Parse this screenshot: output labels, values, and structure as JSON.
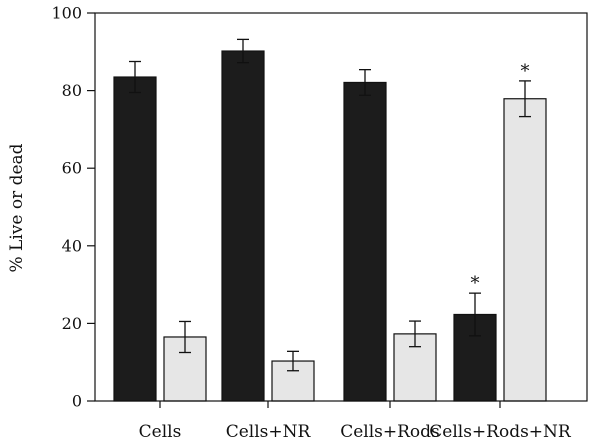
{
  "chart_data": {
    "type": "bar",
    "title": "",
    "xlabel": "",
    "ylabel": "% Live or dead",
    "ylim": [
      0,
      100
    ],
    "yticks": [
      0,
      20,
      40,
      60,
      80,
      100
    ],
    "grid": false,
    "legend": "none",
    "categories": [
      "Cells",
      "Cells+NR",
      "Cells+Rods",
      "Cells+Rods+NR"
    ],
    "series": [
      {
        "color": "#1c1c1c",
        "values": [
          83.5,
          90.2,
          82.1,
          22.3
        ],
        "errors": [
          4.0,
          3.0,
          3.3,
          5.5
        ],
        "annotations": [
          "",
          "",
          "",
          "*"
        ]
      },
      {
        "color": "#e6e6e6",
        "values": [
          16.5,
          10.3,
          17.3,
          77.9
        ],
        "errors": [
          4.0,
          2.5,
          3.3,
          4.6
        ],
        "annotations": [
          "",
          "",
          "",
          "*"
        ]
      }
    ]
  }
}
